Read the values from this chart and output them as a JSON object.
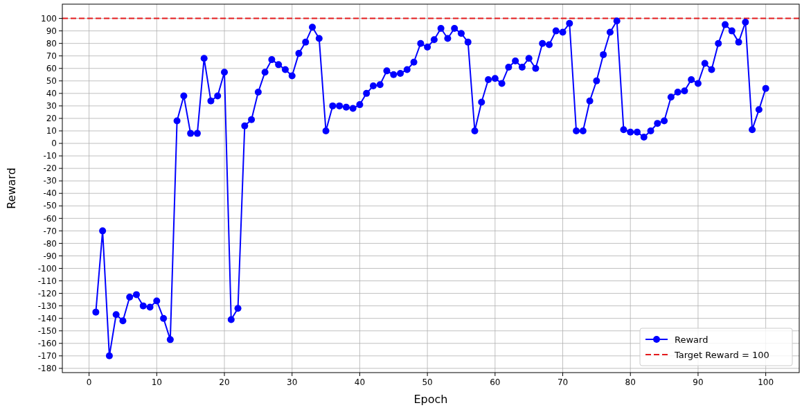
{
  "chart_data": {
    "type": "line",
    "xlabel": "Epoch",
    "ylabel": "Reward",
    "x": [
      1,
      2,
      3,
      4,
      5,
      6,
      7,
      8,
      9,
      10,
      11,
      12,
      13,
      14,
      15,
      16,
      17,
      18,
      19,
      20,
      21,
      22,
      23,
      24,
      25,
      26,
      27,
      28,
      29,
      30,
      31,
      32,
      33,
      34,
      35,
      36,
      37,
      38,
      39,
      40,
      41,
      42,
      43,
      44,
      45,
      46,
      47,
      48,
      49,
      50,
      51,
      52,
      53,
      54,
      55,
      56,
      57,
      58,
      59,
      60,
      61,
      62,
      63,
      64,
      65,
      66,
      67,
      68,
      69,
      70,
      71,
      72,
      73,
      74,
      75,
      76,
      77,
      78,
      79,
      80,
      81,
      82,
      83,
      84,
      85,
      86,
      87,
      88,
      89,
      90,
      91,
      92,
      93,
      94,
      95,
      96,
      97,
      98,
      99,
      100
    ],
    "series": [
      {
        "name": "Reward",
        "color": "#0000ff",
        "values": [
          -135,
          -70,
          -170,
          -137,
          -142,
          -123,
          -121,
          -130,
          -131,
          -126,
          -140,
          -157,
          18,
          38,
          8,
          8,
          68,
          34,
          38,
          57,
          -141,
          -132,
          14,
          19,
          41,
          57,
          67,
          63,
          59,
          54,
          72,
          81,
          93,
          84,
          10,
          30,
          30,
          29,
          28,
          31,
          40,
          46,
          47,
          58,
          55,
          56,
          59,
          65,
          80,
          77,
          83,
          92,
          84,
          92,
          88,
          81,
          10,
          33,
          51,
          52,
          48,
          61,
          66,
          61,
          68,
          60,
          80,
          79,
          90,
          89,
          96,
          10,
          10,
          34,
          50,
          71,
          89,
          98,
          11,
          9,
          9,
          5,
          10,
          16,
          18,
          37,
          41,
          42,
          51,
          48,
          64,
          59,
          80,
          95,
          90,
          81,
          97,
          11,
          27,
          44
        ]
      }
    ],
    "ref_lines": [
      {
        "axis": "y",
        "value": 100,
        "label": "Target Reward = 100",
        "color": "#e41a1c",
        "line_style": "dashed"
      }
    ],
    "xlim": [
      -3.95,
      104.95
    ],
    "ylim": [
      -183.4,
      111.4
    ],
    "xticks": [
      0,
      10,
      20,
      30,
      40,
      50,
      60,
      70,
      80,
      90,
      100
    ],
    "yticks": [
      -180,
      -170,
      -160,
      -150,
      -140,
      -130,
      -120,
      -110,
      -100,
      -90,
      -80,
      -70,
      -60,
      -50,
      -40,
      -30,
      -20,
      -10,
      0,
      10,
      20,
      30,
      40,
      50,
      60,
      70,
      80,
      90,
      100
    ],
    "grid": true,
    "legend": "bottom right",
    "marker": "circle",
    "line_style": "solid"
  }
}
